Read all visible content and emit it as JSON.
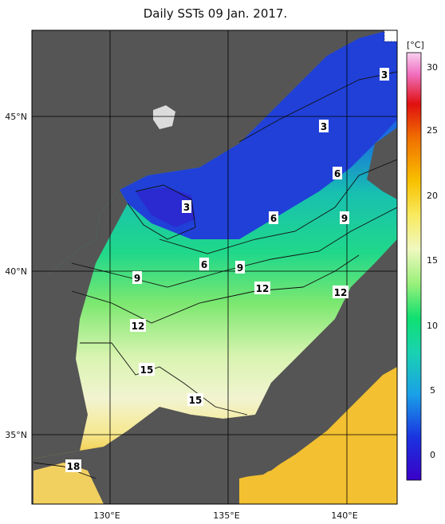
{
  "title": "Daily SSTs 09 Jan. 2017.",
  "colorbar": {
    "unit": "[°C]",
    "ticks": [
      "30",
      "25",
      "20",
      "15",
      "10",
      "5",
      "0"
    ]
  },
  "axes": {
    "lat_labels": [
      "45°N",
      "40°N",
      "35°N"
    ],
    "lon_labels": [
      "130°E",
      "135°E",
      "140°E"
    ]
  },
  "isotherm_labels": [
    "3",
    "3",
    "3",
    "6",
    "6",
    "6",
    "9",
    "9",
    "9",
    "12",
    "12",
    "12",
    "15",
    "15",
    "18"
  ],
  "colors": {
    "land": "#555555",
    "cold": "#1f3fd6",
    "mid": "#19c6a8",
    "warm": "#f7e08a"
  }
}
